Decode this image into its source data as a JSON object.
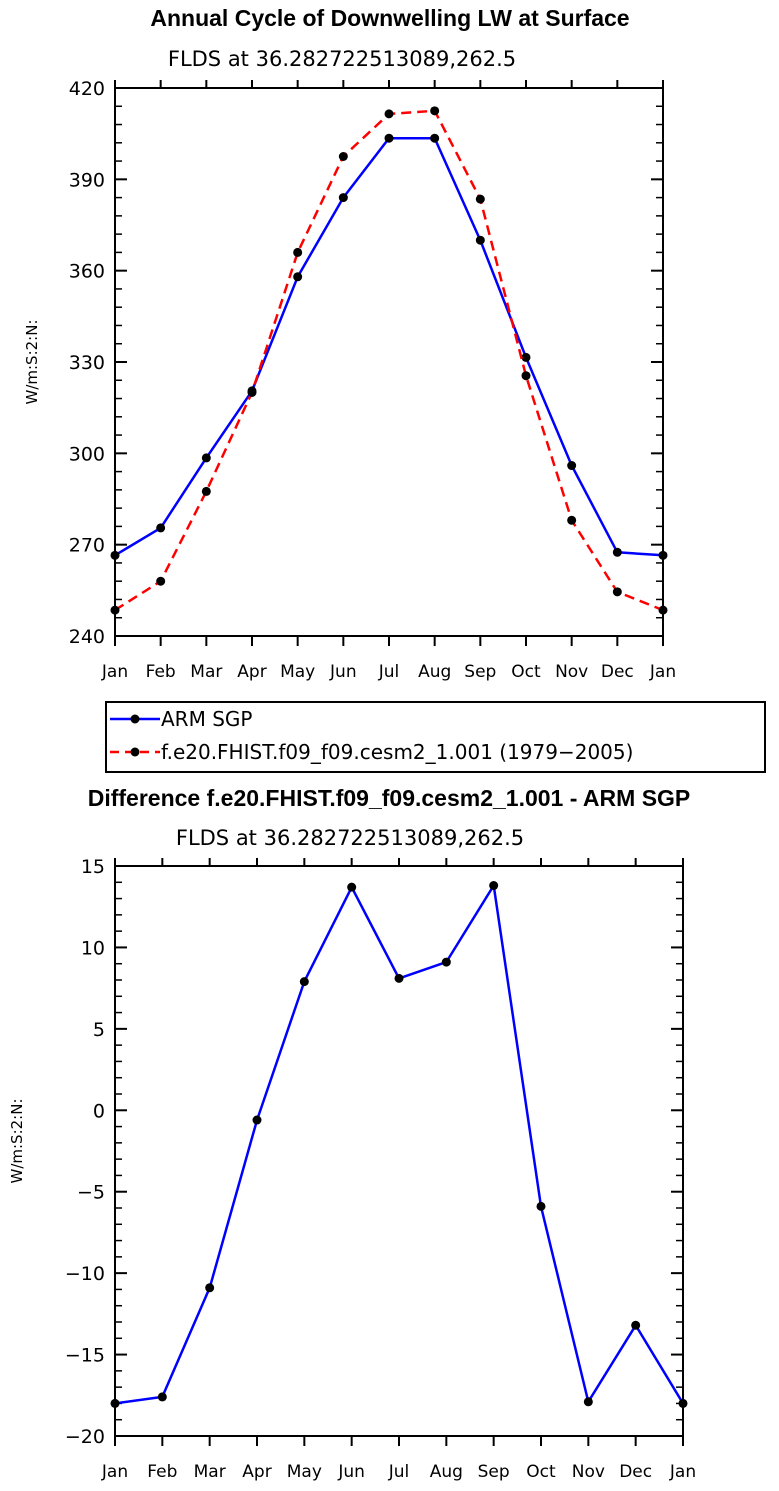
{
  "chart_data": [
    {
      "type": "line",
      "title": "Annual Cycle of Downwelling LW at Surface",
      "subtitle": "FLDS at 36.282722513089,262.5",
      "xlabel": "",
      "ylabel": "W/m:S:2:N:",
      "categories": [
        "Jan",
        "Feb",
        "Mar",
        "Apr",
        "May",
        "Jun",
        "Jul",
        "Aug",
        "Sep",
        "Oct",
        "Nov",
        "Dec",
        "Jan"
      ],
      "ylim": [
        240,
        420
      ],
      "yticks": [
        "240",
        "270",
        "300",
        "330",
        "360",
        "390",
        "420"
      ],
      "series": [
        {
          "name": "ARM SGP",
          "color": "#0000ff",
          "style": "solid",
          "values": [
            266.5,
            275.5,
            298.5,
            320.5,
            358.0,
            384.0,
            403.5,
            403.5,
            370.0,
            331.5,
            296.0,
            267.5,
            266.5
          ]
        },
        {
          "name": "f.e20.FHIST.f09_f09.cesm2_1.001 (1979−2005)",
          "color": "#ff0000",
          "style": "dashed",
          "values": [
            248.5,
            258.0,
            287.5,
            320.0,
            366.0,
            397.5,
            411.5,
            412.5,
            383.5,
            325.5,
            278.0,
            254.5,
            248.5
          ]
        }
      ]
    },
    {
      "type": "line",
      "title": "Difference f.e20.FHIST.f09_f09.cesm2_1.001 - ARM SGP",
      "subtitle": "FLDS at 36.282722513089,262.5",
      "xlabel": "",
      "ylabel": "W/m:S:2:N:",
      "categories": [
        "Jan",
        "Feb",
        "Mar",
        "Apr",
        "May",
        "Jun",
        "Jul",
        "Aug",
        "Sep",
        "Oct",
        "Nov",
        "Dec",
        "Jan"
      ],
      "ylim": [
        -20,
        15
      ],
      "yticks": [
        "−20",
        "−15",
        "−10",
        "−5",
        "0",
        "5",
        "10",
        "15"
      ],
      "series": [
        {
          "name": "Difference",
          "color": "#0000ff",
          "style": "solid",
          "values": [
            -18.0,
            -17.6,
            -10.9,
            -0.6,
            7.9,
            13.7,
            8.1,
            9.1,
            13.8,
            -5.9,
            -17.9,
            -13.2,
            -18.0
          ]
        }
      ]
    }
  ],
  "legend": {
    "entries": [
      "ARM SGP",
      "f.e20.FHIST.f09_f09.cesm2_1.001 (1979−2005)"
    ]
  },
  "colors": {
    "series_blue": "#0000ff",
    "series_red": "#ff0000",
    "marker": "#000000"
  }
}
